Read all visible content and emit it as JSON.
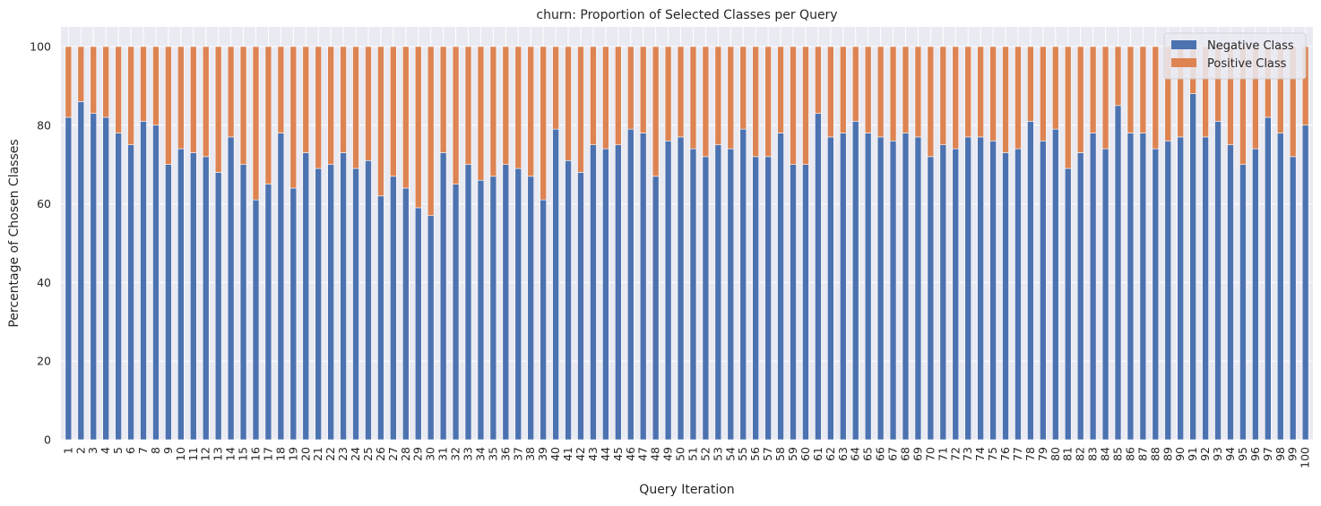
{
  "chart_data": {
    "type": "bar",
    "stacked": true,
    "title": "churn: Proportion of Selected Classes per Query",
    "xlabel": "Query Iteration",
    "ylabel": "Percentage of Chosen Classes",
    "ylim": [
      0,
      105
    ],
    "yticks": [
      0,
      20,
      40,
      60,
      80,
      100
    ],
    "grid": true,
    "legend_position": "top-right",
    "categories": [
      "1",
      "2",
      "3",
      "4",
      "5",
      "6",
      "7",
      "8",
      "9",
      "10",
      "11",
      "12",
      "13",
      "14",
      "15",
      "16",
      "17",
      "18",
      "19",
      "20",
      "21",
      "22",
      "23",
      "24",
      "25",
      "26",
      "27",
      "28",
      "29",
      "30",
      "31",
      "32",
      "33",
      "34",
      "35",
      "36",
      "37",
      "38",
      "39",
      "40",
      "41",
      "42",
      "43",
      "44",
      "45",
      "46",
      "47",
      "48",
      "49",
      "50",
      "51",
      "52",
      "53",
      "54",
      "55",
      "56",
      "57",
      "58",
      "59",
      "60",
      "61",
      "62",
      "63",
      "64",
      "65",
      "66",
      "67",
      "68",
      "69",
      "70",
      "71",
      "72",
      "73",
      "74",
      "75",
      "76",
      "77",
      "78",
      "79",
      "80",
      "81",
      "82",
      "83",
      "84",
      "85",
      "86",
      "87",
      "88",
      "89",
      "90",
      "91",
      "92",
      "93",
      "94",
      "95",
      "96",
      "97",
      "98",
      "99",
      "100"
    ],
    "series": [
      {
        "name": "Negative Class",
        "color": "#4c72b0",
        "values": [
          82,
          86,
          83,
          82,
          78,
          75,
          81,
          80,
          70,
          74,
          73,
          72,
          68,
          77,
          70,
          61,
          65,
          78,
          64,
          73,
          69,
          70,
          73,
          69,
          71,
          62,
          67,
          64,
          59,
          57,
          73,
          65,
          70,
          66,
          67,
          70,
          69,
          67,
          61,
          79,
          71,
          68,
          75,
          74,
          75,
          79,
          78,
          67,
          76,
          77,
          74,
          72,
          75,
          74,
          79,
          72,
          72,
          78,
          70,
          70,
          83,
          77,
          78,
          81,
          78,
          77,
          76,
          78,
          77,
          72,
          75,
          74,
          77,
          77,
          76,
          73,
          74,
          81,
          76,
          79,
          69,
          73,
          78,
          74,
          85,
          78,
          78,
          74,
          76,
          77,
          88,
          77,
          81,
          75,
          70,
          74,
          82,
          78,
          72,
          80
        ]
      },
      {
        "name": "Positive Class",
        "color": "#dd8452",
        "values": [
          18,
          14,
          17,
          18,
          22,
          25,
          19,
          20,
          30,
          26,
          27,
          28,
          32,
          23,
          30,
          39,
          35,
          22,
          36,
          27,
          31,
          30,
          27,
          31,
          29,
          38,
          33,
          36,
          41,
          43,
          27,
          35,
          30,
          34,
          33,
          30,
          31,
          33,
          39,
          21,
          29,
          32,
          25,
          26,
          25,
          21,
          22,
          33,
          24,
          23,
          26,
          28,
          25,
          26,
          21,
          28,
          28,
          22,
          30,
          30,
          17,
          23,
          22,
          19,
          22,
          23,
          24,
          22,
          23,
          28,
          25,
          26,
          23,
          23,
          24,
          27,
          26,
          19,
          24,
          21,
          31,
          27,
          22,
          26,
          15,
          22,
          22,
          26,
          24,
          23,
          12,
          23,
          19,
          25,
          30,
          26,
          18,
          22,
          28,
          20
        ]
      }
    ]
  },
  "style": {
    "plot_background": "#eaeaf2",
    "grid_color": "#ffffff"
  }
}
